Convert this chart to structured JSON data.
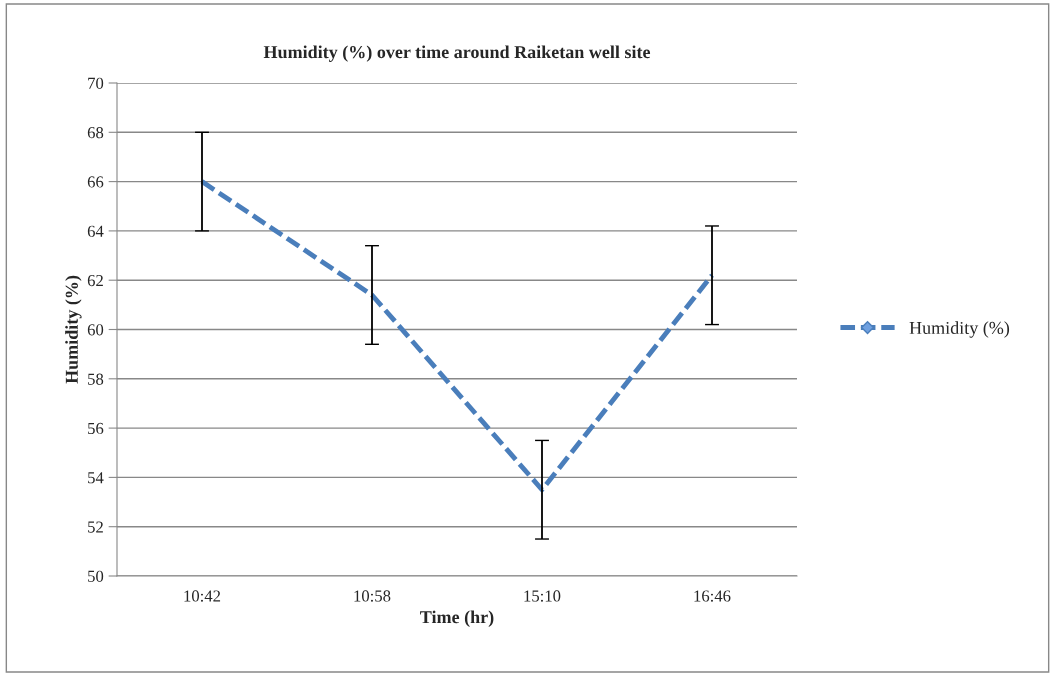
{
  "chart_data": {
    "type": "line",
    "title": "Humidity (%) over time around Raiketan well site",
    "xlabel": "Time (hr)",
    "ylabel": "Humidity (%)",
    "categories": [
      "10:42",
      "10:58",
      "15:10",
      "16:46"
    ],
    "series": [
      {
        "name": "Humidity (%)",
        "color": "#4a7ebb",
        "values": [
          66,
          61.4,
          53.5,
          62.2
        ],
        "errors": [
          2,
          2,
          2,
          2
        ]
      }
    ],
    "ylim": [
      50,
      70
    ],
    "yticks": [
      50,
      52,
      54,
      56,
      58,
      60,
      62,
      64,
      66,
      68,
      70
    ],
    "grid": "y",
    "legend": "right",
    "line_style": "dashed",
    "marker": "none"
  }
}
